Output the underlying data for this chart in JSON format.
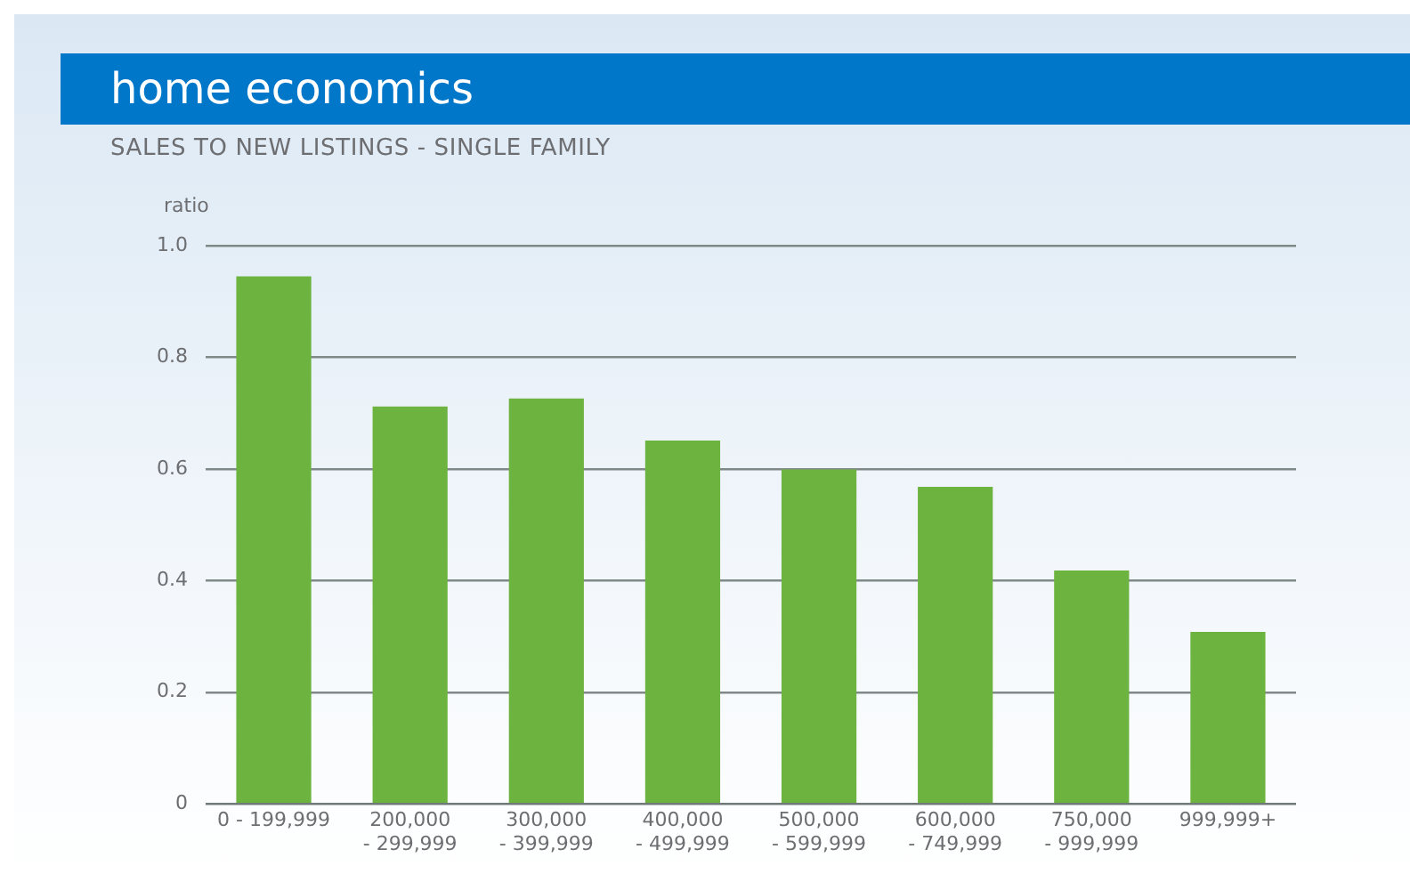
{
  "chart_data": {
    "type": "bar",
    "title": "home economics",
    "subtitle": "SALES TO NEW LISTINGS - SINGLE FAMILY",
    "ylabel": "ratio",
    "categories": [
      "0 - 199,999",
      "200,000 - 299,999",
      "300,000 - 399,999",
      "400,000 - 499,999",
      "500,000 - 599,999",
      "600,000 - 749,999",
      "750,000 - 999,999",
      "999,999+"
    ],
    "values": [
      0.945,
      0.712,
      0.726,
      0.651,
      0.599,
      0.568,
      0.418,
      0.308
    ],
    "color": "#6db33f",
    "ylim": [
      0,
      1
    ],
    "yticks": [
      0,
      {
        "value": 0.2,
        "label": "0.2"
      },
      {
        "value": 0.4,
        "label": "0.4"
      },
      {
        "value": 0.6,
        "label": "0.6"
      },
      {
        "value": 0.8,
        "label": "0.8"
      },
      {
        "value": 1,
        "label": "1.0"
      }
    ],
    "grid": "y",
    "legend": false
  }
}
